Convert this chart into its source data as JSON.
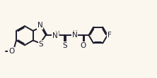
{
  "background_color": "#fbf7ee",
  "line_color": "#1c1c2e",
  "bond_width": 1.4,
  "font_size": 7.5,
  "figsize": [
    2.22,
    1.11
  ],
  "dpi": 100,
  "xlim": [
    0,
    10
  ],
  "ylim": [
    0,
    5
  ]
}
